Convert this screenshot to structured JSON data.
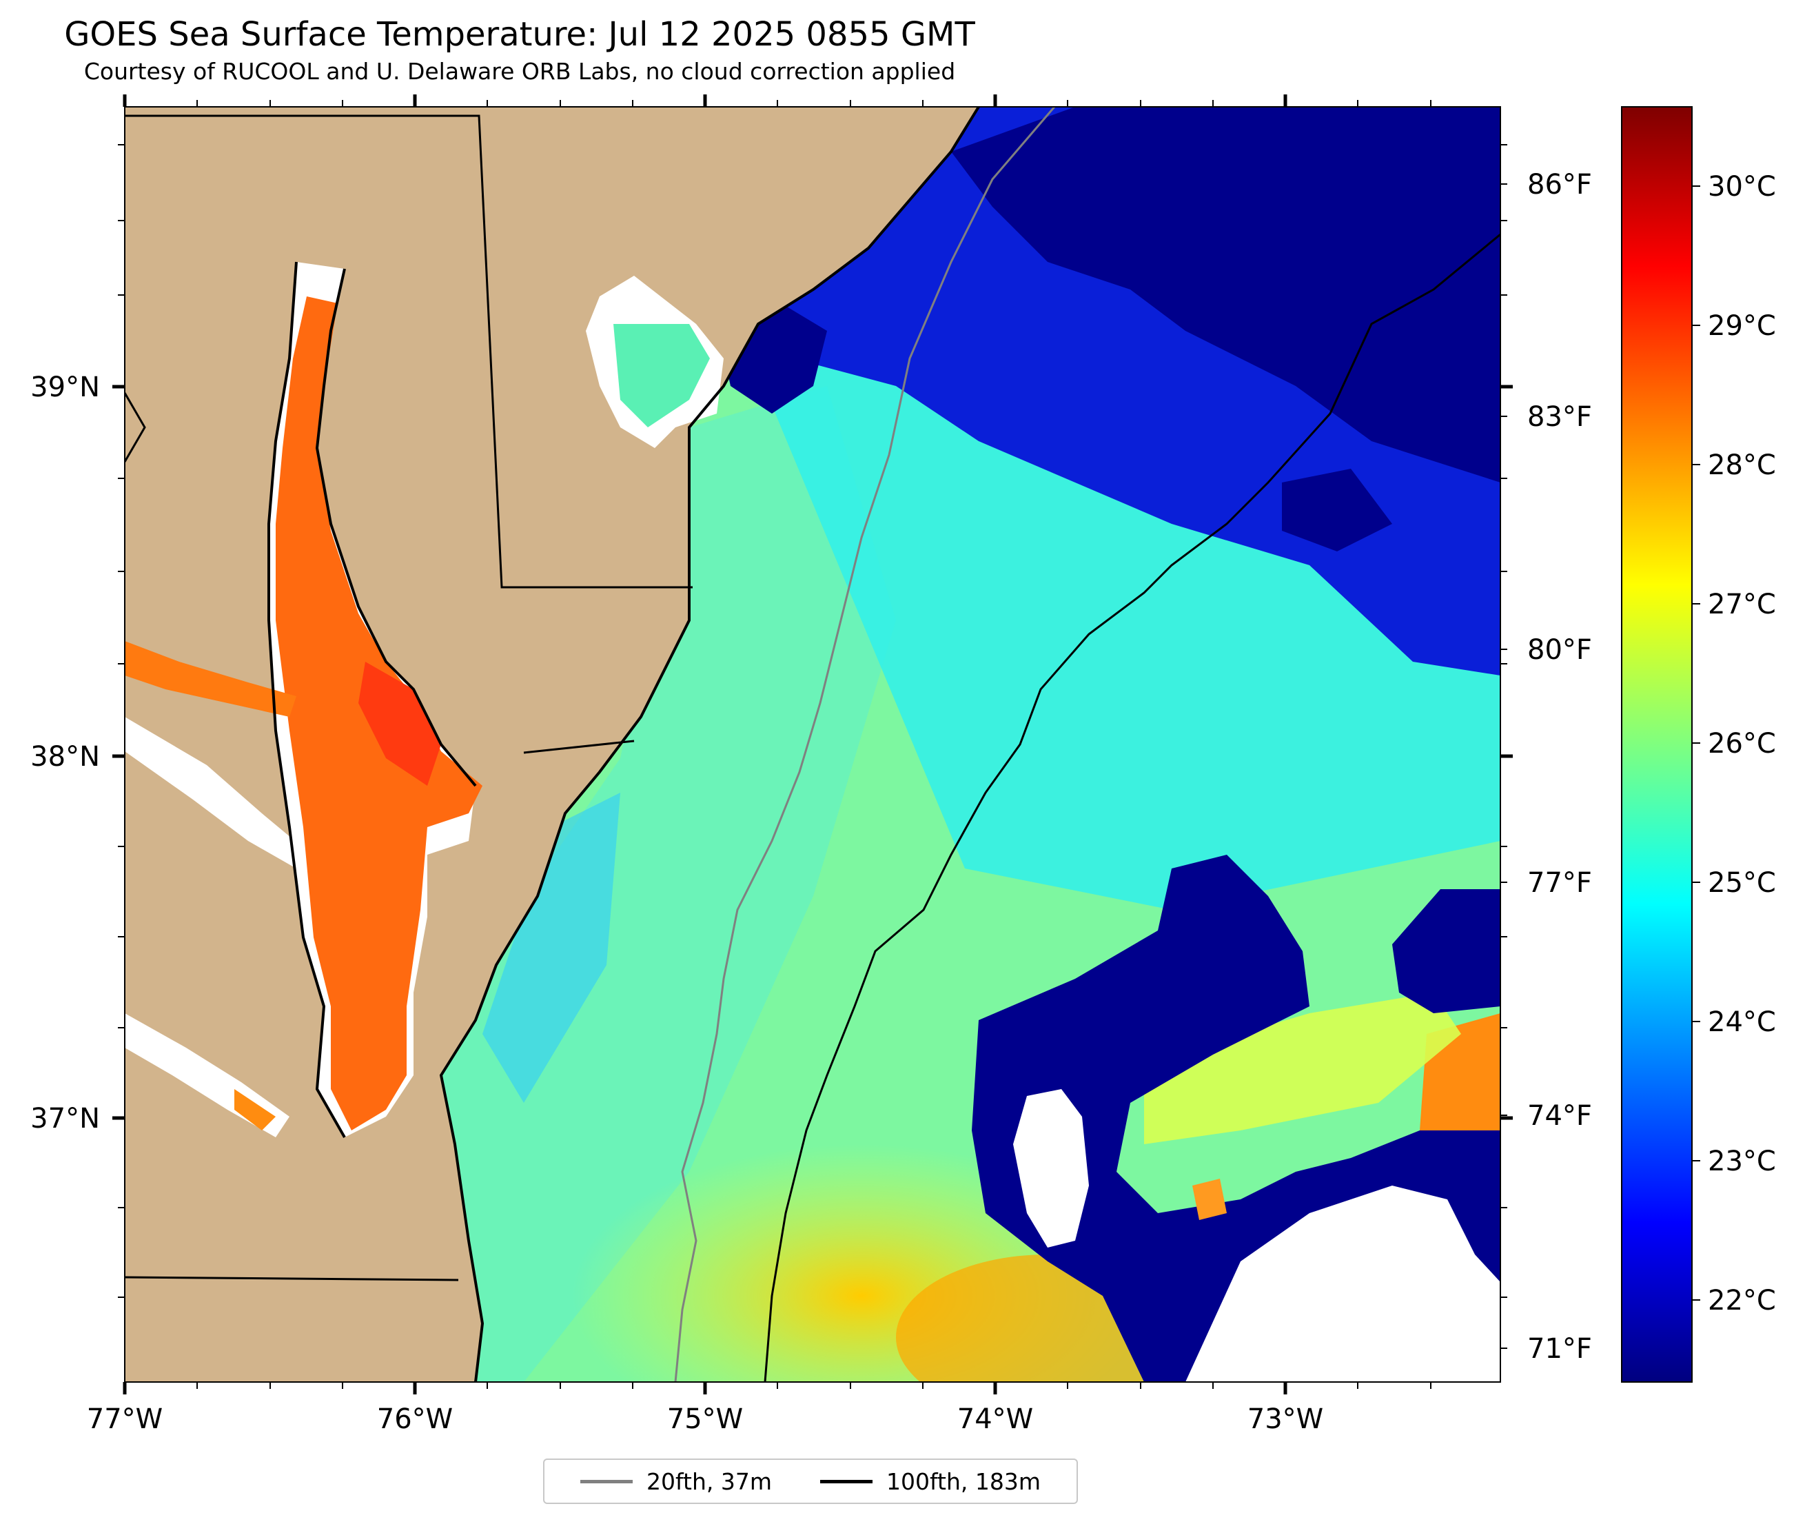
{
  "header": {
    "title": "GOES Sea Surface Temperature: Jul 12 2025 0855 GMT",
    "subtitle": "Courtesy of RUCOOL and U. Delaware ORB Labs, no cloud correction applied"
  },
  "map": {
    "lon_ticks": [
      "77°W",
      "76°W",
      "75°W",
      "74°W",
      "73°W"
    ],
    "lat_ticks": [
      "39°N",
      "38°N",
      "37°N"
    ],
    "land_color": "#d2b48c",
    "no_data_color": "#ffffff",
    "coastline_color": "#000000"
  },
  "colorbar": {
    "celsius_labels": [
      "30°C",
      "29°C",
      "28°C",
      "27°C",
      "26°C",
      "25°C",
      "24°C",
      "23°C",
      "22°C"
    ],
    "fahrenheit_labels": [
      "86°F",
      "83°F",
      "80°F",
      "77°F",
      "74°F",
      "71°F"
    ],
    "colormap": "jet",
    "colors": [
      "#00007f",
      "#0000ff",
      "#007fff",
      "#00ffff",
      "#7fff7f",
      "#ffff00",
      "#ff7f00",
      "#ff0000",
      "#7f0000"
    ]
  },
  "legend": {
    "items": [
      {
        "label": "20fth, 37m",
        "color": "#808080"
      },
      {
        "label": "100fth, 183m",
        "color": "#000000"
      }
    ]
  }
}
